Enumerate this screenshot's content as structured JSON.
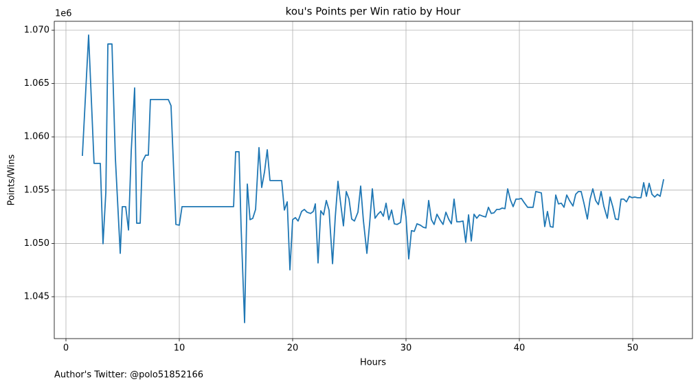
{
  "chart_data": {
    "type": "line",
    "title": "kou's Points per Win ratio by Hour",
    "xlabel": "Hours",
    "ylabel": "Points/Wins",
    "y_offset_label": "1e6",
    "footnote": "Author's Twitter: @polo51852166",
    "grid": true,
    "xlim": [
      -1.03,
      55.27
    ],
    "ylim": [
      1.04107,
      1.07084
    ],
    "xticks": [
      0,
      10,
      20,
      30,
      40,
      50
    ],
    "yticks": [
      {
        "value": 1.045,
        "label": "1.045"
      },
      {
        "value": 1.05,
        "label": "1.050"
      },
      {
        "value": 1.055,
        "label": "1.055"
      },
      {
        "value": 1.06,
        "label": "1.060"
      },
      {
        "value": 1.065,
        "label": "1.065"
      },
      {
        "value": 1.07,
        "label": "1.070"
      }
    ],
    "x": [
      1.45,
      2.0,
      2.48,
      3.03,
      3.27,
      3.52,
      3.7,
      4.06,
      4.36,
      4.79,
      4.97,
      5.27,
      5.52,
      5.76,
      6.06,
      6.24,
      6.55,
      6.73,
      7.03,
      7.27,
      7.45,
      9.03,
      9.27,
      9.7,
      10.0,
      10.24,
      14.79,
      14.97,
      15.27,
      15.45,
      15.76,
      16.0,
      16.24,
      16.48,
      16.73,
      17.03,
      17.27,
      17.52,
      17.76,
      18.0,
      19.03,
      19.27,
      19.52,
      19.76,
      20.0,
      20.24,
      20.48,
      20.79,
      21.03,
      21.27,
      21.58,
      21.82,
      22.0,
      22.24,
      22.48,
      22.73,
      22.97,
      23.21,
      23.52,
      23.76,
      24.0,
      24.24,
      24.48,
      24.73,
      24.97,
      25.21,
      25.45,
      25.76,
      26.0,
      26.24,
      26.55,
      26.79,
      27.03,
      27.27,
      27.52,
      27.76,
      28.0,
      28.24,
      28.48,
      28.73,
      28.97,
      29.21,
      29.52,
      29.76,
      30.0,
      30.24,
      30.48,
      30.73,
      30.97,
      31.27,
      31.52,
      31.76,
      32.0,
      32.24,
      32.48,
      32.73,
      33.03,
      33.27,
      33.52,
      33.76,
      34.0,
      34.24,
      34.48,
      34.73,
      35.03,
      35.27,
      35.52,
      35.76,
      36.0,
      36.24,
      36.48,
      36.79,
      37.03,
      37.27,
      37.52,
      37.76,
      38.0,
      38.24,
      38.48,
      38.73,
      38.97,
      39.21,
      39.45,
      39.7,
      39.94,
      40.18,
      40.42,
      40.73,
      40.97,
      41.21,
      41.45,
      41.7,
      41.94,
      42.24,
      42.48,
      42.73,
      42.97,
      43.21,
      43.45,
      43.7,
      43.94,
      44.18,
      44.42,
      44.73,
      44.97,
      45.21,
      45.45,
      45.7,
      46.0,
      46.24,
      46.48,
      46.73,
      46.97,
      47.21,
      47.45,
      47.76,
      48.0,
      48.24,
      48.48,
      48.73,
      48.97,
      49.21,
      49.45,
      49.7,
      49.94,
      50.18,
      50.42,
      50.73,
      50.97,
      51.21,
      51.45,
      51.7,
      51.94,
      52.18,
      52.42,
      52.73
    ],
    "series": [
      {
        "name": "Points/Wins",
        "color": "#1f77b4",
        "values": [
          1.05821,
          1.06955,
          1.05751,
          1.05751,
          1.04997,
          1.0548,
          1.06871,
          1.06871,
          1.05802,
          1.04907,
          1.05345,
          1.05345,
          1.05126,
          1.05867,
          1.06459,
          1.0519,
          1.0519,
          1.05764,
          1.05828,
          1.05828,
          1.0635,
          1.0635,
          1.06292,
          1.05178,
          1.05171,
          1.05345,
          1.05345,
          1.0586,
          1.0586,
          1.05158,
          1.04257,
          1.05557,
          1.05223,
          1.05235,
          1.05319,
          1.05899,
          1.05525,
          1.05673,
          1.05879,
          1.0559,
          1.0559,
          1.05313,
          1.0539,
          1.04752,
          1.05223,
          1.05242,
          1.0521,
          1.053,
          1.05319,
          1.05293,
          1.05281,
          1.053,
          1.05371,
          1.04817,
          1.05306,
          1.05268,
          1.05403,
          1.05313,
          1.0481,
          1.05248,
          1.05583,
          1.05371,
          1.05165,
          1.05487,
          1.05416,
          1.05229,
          1.0521,
          1.05293,
          1.05538,
          1.05216,
          1.04907,
          1.05184,
          1.05512,
          1.05236,
          1.05274,
          1.053,
          1.05255,
          1.05377,
          1.05223,
          1.05313,
          1.05184,
          1.05178,
          1.05197,
          1.05416,
          1.05248,
          1.04855,
          1.0512,
          1.05113,
          1.05184,
          1.05171,
          1.05152,
          1.05145,
          1.05403,
          1.05223,
          1.05178,
          1.05274,
          1.05216,
          1.05178,
          1.05293,
          1.05229,
          1.05184,
          1.05416,
          1.05203,
          1.05203,
          1.0521,
          1.0501,
          1.05268,
          1.05023,
          1.05274,
          1.05236,
          1.05268,
          1.05255,
          1.05248,
          1.05339,
          1.05281,
          1.05287,
          1.05319,
          1.05319,
          1.05332,
          1.05326,
          1.05512,
          1.05409,
          1.05345,
          1.05416,
          1.05416,
          1.05422,
          1.05384,
          1.05339,
          1.05339,
          1.05339,
          1.05487,
          1.0548,
          1.05474,
          1.05158,
          1.053,
          1.05158,
          1.05152,
          1.05454,
          1.05371,
          1.05377,
          1.05339,
          1.05454,
          1.05403,
          1.05351,
          1.05461,
          1.05487,
          1.05487,
          1.05377,
          1.05229,
          1.05416,
          1.05512,
          1.05403,
          1.05364,
          1.05487,
          1.05351,
          1.05236,
          1.05435,
          1.05345,
          1.05229,
          1.05223,
          1.05416,
          1.05416,
          1.0539,
          1.05442,
          1.05429,
          1.05435,
          1.05429,
          1.05429,
          1.0557,
          1.05442,
          1.05564,
          1.05461,
          1.05435,
          1.05461,
          1.05442,
          1.05602
        ]
      }
    ]
  }
}
